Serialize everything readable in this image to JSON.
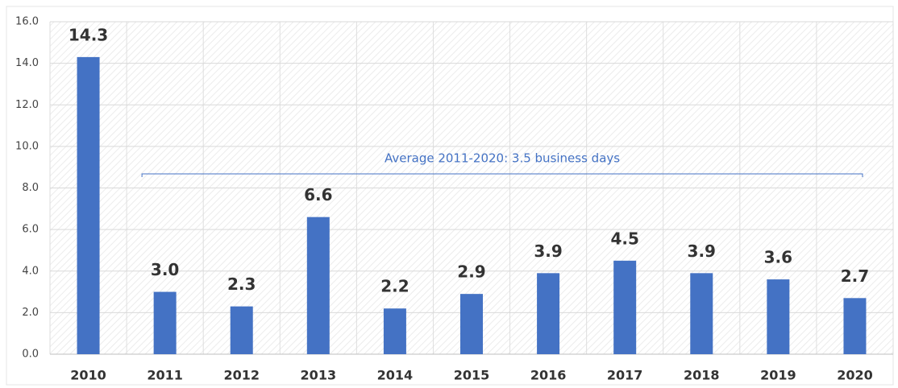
{
  "chart_data": {
    "type": "bar",
    "categories": [
      "2010",
      "2011",
      "2012",
      "2013",
      "2014",
      "2015",
      "2016",
      "2017",
      "2018",
      "2019",
      "2020"
    ],
    "values": [
      14.3,
      3,
      2.3,
      6.6,
      2.2,
      2.9,
      3.9,
      4.5,
      3.9,
      3.6,
      2.7
    ],
    "value_labels": [
      "14.3",
      "3.0",
      "2.3",
      "6.6",
      "2.2",
      "2.9",
      "3.9",
      "4.5",
      "3.9",
      "3.6",
      "2.7"
    ],
    "color": "#4472c4",
    "ylim": [
      0,
      16
    ],
    "yticks": [
      {
        "value": 0,
        "label": "0.0"
      },
      {
        "value": 2,
        "label": "2.0"
      },
      {
        "value": 4,
        "label": "4.0"
      },
      {
        "value": 6,
        "label": "6.0"
      },
      {
        "value": 8,
        "label": "8.0"
      },
      {
        "value": 10,
        "label": "10.0"
      },
      {
        "value": 12,
        "label": "12.0"
      },
      {
        "value": 14,
        "label": "14.0"
      },
      {
        "value": 16,
        "label": "16.0"
      }
    ],
    "grid": true,
    "annotation": "Average 2011-2020: 3.5 business days"
  }
}
